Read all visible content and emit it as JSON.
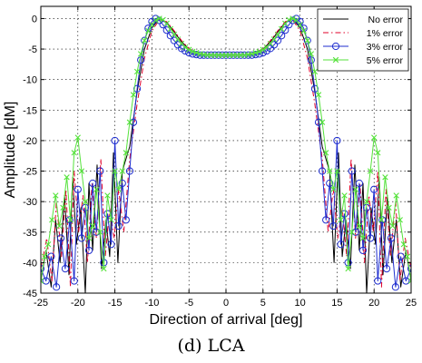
{
  "caption": "(d) LCA",
  "chart_data": {
    "type": "line",
    "xlabel": "Direction of arrival [deg]",
    "ylabel": "Amplitude [dM]",
    "xlim": [
      -25,
      25
    ],
    "ylim": [
      -45,
      2
    ],
    "xticks": [
      -25,
      -20,
      -15,
      -10,
      -5,
      0,
      5,
      10,
      15,
      20,
      25
    ],
    "yticks": [
      0,
      -5,
      -10,
      -15,
      -20,
      -25,
      -30,
      -35,
      -40,
      -45
    ],
    "grid": true,
    "legend_position": "top-right",
    "series": [
      {
        "name": "No error",
        "color": "#000000",
        "line_style": "solid",
        "marker": "none",
        "x": [
          -25,
          -24.3,
          -23.6,
          -23.0,
          -22.4,
          -21.8,
          -21.2,
          -20.7,
          -20.2,
          -19.6,
          -19.0,
          -18.5,
          -18.0,
          -17.4,
          -16.8,
          -16.2,
          -15.7,
          -15.2,
          -14.6,
          -14.0,
          -13.0,
          -12.0,
          -11.0,
          -10.0,
          -9.0,
          -8.0,
          -7.0,
          -6.0,
          -5.0,
          -4.0,
          -3.0,
          -2.0,
          -1.0,
          0.0,
          1.0,
          2.0,
          3.0,
          4.0,
          5.0,
          6.0,
          7.0,
          8.0,
          9.0,
          10.0,
          11.0,
          12.0,
          13.0,
          14.0,
          14.6,
          15.2,
          15.7,
          16.2,
          16.8,
          17.4,
          18.0,
          18.5,
          19.0,
          19.6,
          20.2,
          20.7,
          21.2,
          21.8,
          22.4,
          23.0,
          23.6,
          24.3,
          25.0
        ],
        "y": [
          -43,
          -38,
          -44,
          -33,
          -40,
          -29,
          -42,
          -26,
          -37,
          -31,
          -45,
          -27,
          -38,
          -24,
          -41,
          -33,
          -39,
          -22,
          -40,
          -25,
          -21,
          -12,
          -5,
          -1.5,
          0,
          -0.6,
          -2.2,
          -3.8,
          -5.0,
          -5.6,
          -5.9,
          -6.0,
          -6.0,
          -6.0,
          -6.0,
          -6.0,
          -5.9,
          -5.6,
          -5.0,
          -3.8,
          -2.2,
          -0.6,
          0,
          -1.5,
          -5,
          -12,
          -21,
          -25,
          -40,
          -22,
          -39,
          -33,
          -41,
          -24,
          -38,
          -27,
          -45,
          -31,
          -37,
          -26,
          -42,
          -29,
          -40,
          -33,
          -44,
          -38,
          -43
        ]
      },
      {
        "name": "1% error",
        "color": "#e0002a",
        "line_style": "dashdot",
        "marker": "none",
        "x": [
          -25,
          -24.2,
          -23.5,
          -22.9,
          -22.2,
          -21.6,
          -21.0,
          -20.5,
          -19.9,
          -19.3,
          -18.7,
          -18.1,
          -17.5,
          -16.9,
          -16.3,
          -15.7,
          -15.1,
          -14.5,
          -13.8,
          -13.0,
          -12.0,
          -11.0,
          -10.0,
          -9.0,
          -8.0,
          -7.0,
          -6.0,
          -5.0,
          -4.0,
          -3.0,
          -2.0,
          -1.0,
          0.0,
          1.0,
          2.0,
          3.0,
          4.0,
          5.0,
          6.0,
          7.0,
          8.0,
          9.0,
          10.0,
          11.0,
          12.0,
          13.0,
          13.8,
          14.5,
          15.1,
          15.7,
          16.3,
          16.9,
          17.5,
          18.1,
          18.7,
          19.3,
          19.9,
          20.5,
          21.0,
          21.6,
          22.2,
          22.9,
          23.5,
          24.2,
          25.0
        ],
        "y": [
          -41,
          -36,
          -43,
          -30,
          -39,
          -28,
          -44,
          -25,
          -35,
          -29,
          -40,
          -27,
          -36,
          -23,
          -39,
          -31,
          -36,
          -28,
          -35,
          -23,
          -14,
          -6.5,
          -2.0,
          -0.2,
          -0.5,
          -2.0,
          -3.6,
          -4.9,
          -5.6,
          -5.9,
          -6.0,
          -6.0,
          -6.0,
          -6.0,
          -6.0,
          -5.9,
          -5.6,
          -4.9,
          -3.6,
          -2.0,
          -0.5,
          -0.2,
          -2.0,
          -6.5,
          -14,
          -23,
          -35,
          -28,
          -36,
          -31,
          -39,
          -23,
          -36,
          -27,
          -40,
          -29,
          -35,
          -25,
          -44,
          -28,
          -39,
          -30,
          -43,
          -36,
          -41
        ]
      },
      {
        "name": "3% error",
        "color": "#1f2ecf",
        "line_style": "solid",
        "marker": "circle",
        "x": [
          -25,
          -24.3,
          -23.6,
          -22.9,
          -22.3,
          -21.7,
          -21.1,
          -20.5,
          -20.0,
          -19.5,
          -19.0,
          -18.5,
          -18.0,
          -17.5,
          -17.0,
          -16.5,
          -16.0,
          -15.5,
          -15.0,
          -14.5,
          -14.0,
          -13.5,
          -13.0,
          -12.5,
          -12.0,
          -11.5,
          -11.0,
          -10.5,
          -10.0,
          -9.5,
          -9.0,
          -8.5,
          -8.0,
          -7.5,
          -7.0,
          -6.5,
          -6.0,
          -5.5,
          -5.0,
          -4.5,
          -4.0,
          -3.5,
          -3.0,
          -2.5,
          -2.0,
          -1.5,
          -1.0,
          -0.5,
          0.0,
          0.5,
          1.0,
          1.5,
          2.0,
          2.5,
          3.0,
          3.5,
          4.0,
          4.5,
          5.0,
          5.5,
          6.0,
          6.5,
          7.0,
          7.5,
          8.0,
          8.5,
          9.0,
          9.5,
          10.0,
          10.5,
          11.0,
          11.5,
          12.0,
          12.5,
          13.0,
          13.5,
          14.0,
          14.5,
          15.0,
          15.5,
          16.0,
          16.5,
          17.0,
          17.5,
          18.0,
          18.5,
          19.0,
          19.5,
          20.0,
          20.5,
          21.1,
          21.7,
          22.3,
          22.9,
          23.6,
          24.3,
          25.0
        ],
        "y": [
          -41,
          -43,
          -39,
          -44,
          -36,
          -41,
          -33,
          -43,
          -28,
          -36,
          -31,
          -38,
          -27,
          -35,
          -25,
          -40,
          -32,
          -37,
          -20,
          -34,
          -27,
          -33,
          -25,
          -17,
          -11.5,
          -6.8,
          -3.6,
          -1.6,
          -0.5,
          0,
          -0.3,
          -1.0,
          -1.9,
          -2.8,
          -3.6,
          -4.3,
          -4.9,
          -5.3,
          -5.6,
          -5.8,
          -5.9,
          -6.0,
          -6.0,
          -6.0,
          -6.0,
          -6.0,
          -6.0,
          -6.0,
          -6.0,
          -6.0,
          -6.0,
          -6.0,
          -6.0,
          -6.0,
          -6.0,
          -6.0,
          -5.9,
          -5.8,
          -5.6,
          -5.3,
          -4.9,
          -4.3,
          -3.6,
          -2.8,
          -1.9,
          -1.0,
          -0.3,
          0,
          -0.5,
          -1.6,
          -3.6,
          -6.8,
          -11.5,
          -17,
          -25,
          -33,
          -27,
          -34,
          -20,
          -37,
          -32,
          -40,
          -25,
          -35,
          -27,
          -38,
          -31,
          -36,
          -28,
          -43,
          -33,
          -41,
          -36,
          -44,
          -39,
          -43,
          -41
        ]
      },
      {
        "name": "5% error",
        "color": "#55e23b",
        "line_style": "solid",
        "marker": "x",
        "x": [
          -25,
          -24.5,
          -24.0,
          -23.5,
          -23.0,
          -22.5,
          -22.0,
          -21.5,
          -21.0,
          -20.5,
          -20.0,
          -19.5,
          -19.0,
          -18.5,
          -18.0,
          -17.5,
          -17.0,
          -16.5,
          -16.0,
          -15.5,
          -15.0,
          -14.5,
          -14.0,
          -13.5,
          -13.0,
          -12.5,
          -12.0,
          -11.5,
          -11.0,
          -10.5,
          -10.0,
          -9.5,
          -9.0,
          -8.5,
          -8.0,
          -7.5,
          -7.0,
          -6.5,
          -6.0,
          -5.5,
          -5.0,
          -4.5,
          -4.0,
          -3.5,
          -3.0,
          -2.5,
          -2.0,
          -1.5,
          -1.0,
          -0.5,
          0.0,
          0.5,
          1.0,
          1.5,
          2.0,
          2.5,
          3.0,
          3.5,
          4.0,
          4.5,
          5.0,
          5.5,
          6.0,
          6.5,
          7.0,
          7.5,
          8.0,
          8.5,
          9.0,
          9.5,
          10.0,
          10.5,
          11.0,
          11.5,
          12.0,
          12.5,
          13.0,
          13.5,
          14.0,
          14.5,
          15.0,
          15.5,
          16.0,
          16.5,
          17.0,
          17.5,
          18.0,
          18.5,
          19.0,
          19.5,
          20.0,
          20.5,
          21.0,
          21.5,
          22.0,
          22.5,
          23.0,
          23.5,
          24.0,
          24.5,
          25.0
        ],
        "y": [
          -43,
          -39,
          -37,
          -33,
          -29,
          -34,
          -31,
          -26,
          -33,
          -22,
          -19.5,
          -25,
          -30,
          -36,
          -34,
          -28,
          -35,
          -41,
          -29,
          -33,
          -25,
          -28,
          -25,
          -22,
          -17,
          -12.5,
          -8.7,
          -5.8,
          -3.6,
          -2.0,
          -1.0,
          -0.3,
          0,
          -0.2,
          -0.8,
          -1.7,
          -2.6,
          -3.4,
          -4.1,
          -4.7,
          -5.1,
          -5.4,
          -5.6,
          -5.8,
          -5.9,
          -6.0,
          -6.0,
          -6.0,
          -6.0,
          -6.0,
          -6.0,
          -6.0,
          -6.0,
          -6.0,
          -6.0,
          -6.0,
          -5.9,
          -5.8,
          -5.6,
          -5.4,
          -5.1,
          -4.7,
          -4.1,
          -3.4,
          -2.6,
          -1.7,
          -0.8,
          -0.2,
          0,
          -0.3,
          -1.0,
          -2.0,
          -3.6,
          -5.8,
          -8.7,
          -12.5,
          -17,
          -22,
          -25,
          -28,
          -25,
          -33,
          -29,
          -41,
          -35,
          -28,
          -34,
          -36,
          -30,
          -25,
          -19.5,
          -22,
          -33,
          -26,
          -31,
          -34,
          -29,
          -33,
          -37,
          -39,
          -43
        ]
      }
    ]
  }
}
